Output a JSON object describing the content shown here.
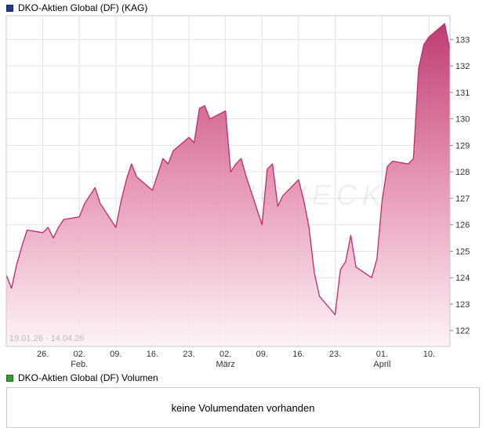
{
  "price_panel": {
    "title": "DKO-Aktien Global (DF) (KAG)",
    "marker_color": "#1e3a93"
  },
  "volume_panel": {
    "title": "DKO-Aktien Global (DF) Volumen",
    "marker_color": "#2fa12f",
    "message": "keine Volumendaten vorhanden"
  },
  "chart_data": {
    "type": "area",
    "title": "DKO-Aktien Global (DF) (KAG)",
    "range_label": "19.01.26 - 14.04.26",
    "watermark": "AKTIENCHECK",
    "ylim": [
      121.4,
      133.9
    ],
    "y_ticks": [
      122,
      123,
      124,
      125,
      126,
      127,
      128,
      129,
      130,
      131,
      132,
      133
    ],
    "x_ticks": [
      {
        "label": "26.",
        "date": "26.01"
      },
      {
        "label": "02.",
        "date": "02.02"
      },
      {
        "label": "09.",
        "date": "09.02"
      },
      {
        "label": "16.",
        "date": "16.02"
      },
      {
        "label": "23.",
        "date": "23.02"
      },
      {
        "label": "02.",
        "date": "02.03"
      },
      {
        "label": "09.",
        "date": "09.03"
      },
      {
        "label": "16.",
        "date": "16.03"
      },
      {
        "label": "23.",
        "date": "23.03"
      },
      {
        "label": "01.",
        "date": "01.04"
      },
      {
        "label": "10.",
        "date": "10.04"
      }
    ],
    "month_ticks": [
      {
        "label": "Feb.",
        "date": "02.02"
      },
      {
        "label": "März",
        "date": "02.03"
      },
      {
        "label": "April",
        "date": "01.04"
      }
    ],
    "x_axis_start": "19.01",
    "x_axis_end": "14.04",
    "grid": true,
    "legend_position": "top-left",
    "colors": {
      "line": "#c22a65",
      "area_top": "#b62360",
      "area_mid": "#e287ab",
      "area_bottom": "#fdf2f6",
      "gridline": "#e3e3e3",
      "plot_border": "#c8c8c8",
      "axis_text": "#333333",
      "range_text": "#bdbdbd"
    },
    "series": [
      {
        "name": "DKO-Aktien Global (DF)",
        "points": [
          [
            "19.01",
            124.1
          ],
          [
            "20.01",
            123.6
          ],
          [
            "21.01",
            124.5
          ],
          [
            "22.01",
            125.2
          ],
          [
            "23.01",
            125.8
          ],
          [
            "26.01",
            125.7
          ],
          [
            "27.01",
            125.9
          ],
          [
            "28.01",
            125.5
          ],
          [
            "29.01",
            125.9
          ],
          [
            "30.01",
            126.2
          ],
          [
            "02.02",
            126.3
          ],
          [
            "03.02",
            126.8
          ],
          [
            "04.02",
            127.1
          ],
          [
            "05.02",
            127.4
          ],
          [
            "06.02",
            126.8
          ],
          [
            "09.02",
            125.9
          ],
          [
            "10.02",
            126.9
          ],
          [
            "11.02",
            127.7
          ],
          [
            "12.02",
            128.3
          ],
          [
            "13.02",
            127.8
          ],
          [
            "16.02",
            127.3
          ],
          [
            "17.02",
            127.9
          ],
          [
            "18.02",
            128.5
          ],
          [
            "19.02",
            128.3
          ],
          [
            "20.02",
            128.8
          ],
          [
            "23.02",
            129.3
          ],
          [
            "24.02",
            129.1
          ],
          [
            "25.02",
            130.4
          ],
          [
            "26.02",
            130.5
          ],
          [
            "27.02",
            130.0
          ],
          [
            "02.03",
            130.3
          ],
          [
            "03.03",
            128.0
          ],
          [
            "04.03",
            128.3
          ],
          [
            "05.03",
            128.5
          ],
          [
            "06.03",
            127.8
          ],
          [
            "09.03",
            126.0
          ],
          [
            "10.03",
            128.1
          ],
          [
            "11.03",
            128.3
          ],
          [
            "12.03",
            126.7
          ],
          [
            "13.03",
            127.1
          ],
          [
            "16.03",
            127.7
          ],
          [
            "17.03",
            126.9
          ],
          [
            "18.03",
            125.9
          ],
          [
            "19.03",
            124.2
          ],
          [
            "20.03",
            123.3
          ],
          [
            "23.03",
            122.6
          ],
          [
            "24.03",
            124.3
          ],
          [
            "25.03",
            124.6
          ],
          [
            "26.03",
            125.6
          ],
          [
            "27.03",
            124.4
          ],
          [
            "30.03",
            124.0
          ],
          [
            "31.03",
            124.7
          ],
          [
            "01.04",
            126.9
          ],
          [
            "02.04",
            128.2
          ],
          [
            "03.04",
            128.4
          ],
          [
            "06.04",
            128.3
          ],
          [
            "07.04",
            128.5
          ],
          [
            "08.04",
            131.9
          ],
          [
            "09.04",
            132.8
          ],
          [
            "10.04",
            133.1
          ],
          [
            "13.04",
            133.6
          ],
          [
            "14.04",
            132.6
          ]
        ]
      }
    ]
  }
}
